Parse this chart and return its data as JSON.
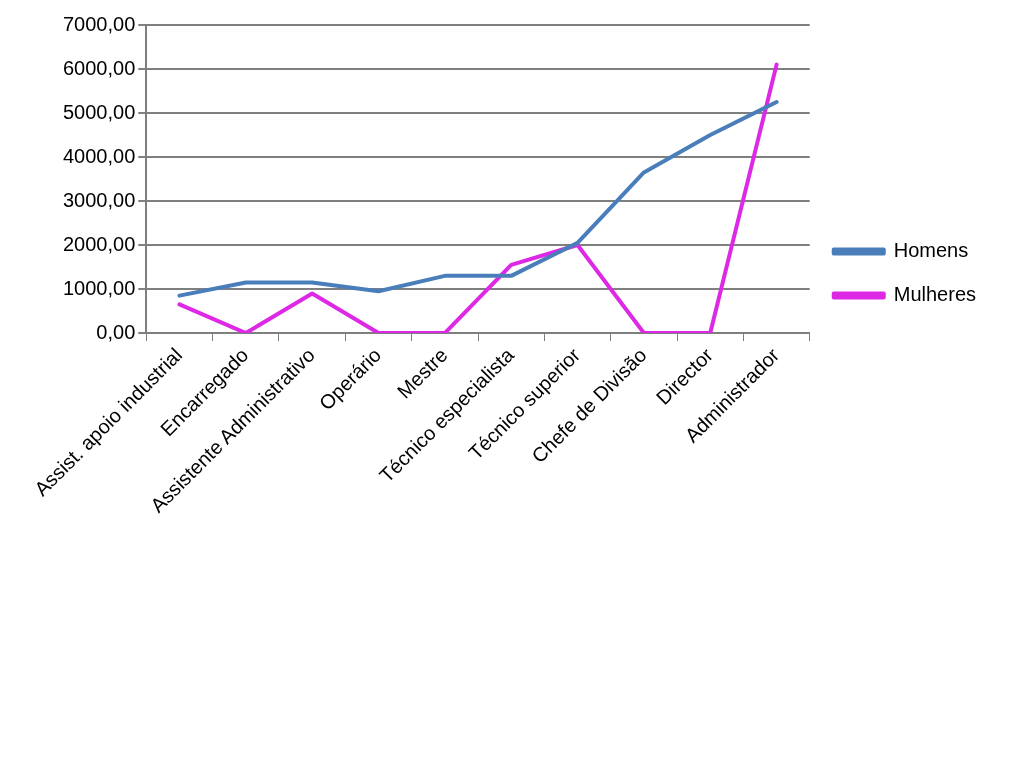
{
  "chart_data": {
    "type": "line",
    "categories": [
      "Assist. apoio industrial",
      "Encarregado",
      "Assistente Administrativo",
      "Operário",
      "Mestre",
      "Técnico especialista",
      "Técnico superior",
      "Chefe de Divisão",
      "Director",
      "Administrador"
    ],
    "series": [
      {
        "name": "Homens",
        "color": "#4a7ebb",
        "values": [
          850,
          1150,
          1150,
          950,
          1300,
          1300,
          2050,
          3650,
          4500,
          5250
        ]
      },
      {
        "name": "Mulheres",
        "color": "#dd28e6",
        "values": [
          650,
          0,
          900,
          0,
          0,
          1550,
          2000,
          0,
          0,
          6100
        ]
      }
    ],
    "ylim": [
      0,
      7000
    ],
    "yticks": [
      {
        "value": 0,
        "label": "0,00"
      },
      {
        "value": 1000,
        "label": "1000,00"
      },
      {
        "value": 2000,
        "label": "2000,00"
      },
      {
        "value": 3000,
        "label": "3000,00"
      },
      {
        "value": 4000,
        "label": "4000,00"
      },
      {
        "value": 5000,
        "label": "5000,00"
      },
      {
        "value": 6000,
        "label": "6000,00"
      },
      {
        "value": 7000,
        "label": "7000,00"
      }
    ],
    "grid": "y",
    "legend": "right",
    "marker": "none",
    "line_style": "solid"
  }
}
